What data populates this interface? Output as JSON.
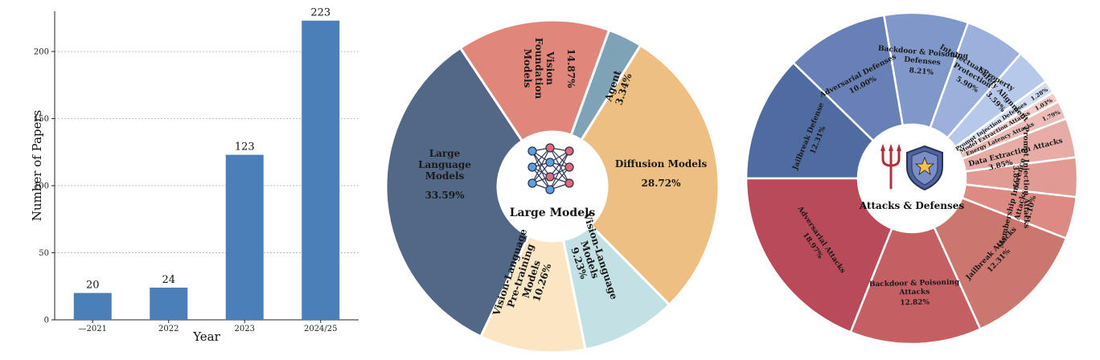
{
  "chart_data": [
    {
      "type": "bar",
      "categories": [
        "—2021",
        "2022",
        "2023",
        "2024/25"
      ],
      "values": [
        20,
        24,
        123,
        223
      ],
      "xlabel": "Year",
      "ylabel": "Number of Papers",
      "ylim": [
        0,
        230
      ],
      "yticks": [
        "0",
        "50",
        "100",
        "150",
        "200"
      ],
      "grid": "horizontal dotted",
      "color": "#4a7fb8"
    },
    {
      "type": "pie",
      "center_label": "Large Models",
      "center_icon": "neural-network-icon",
      "slices": [
        {
          "name": "Large Language Models",
          "percent": "33.59%",
          "value": 33.59,
          "color": "#536786"
        },
        {
          "name": "Vision Foundation Models",
          "percent": "14.87%",
          "value": 14.87,
          "color": "#e0867a"
        },
        {
          "name": "Agent",
          "percent": "3.34%",
          "value": 3.34,
          "color": "#7fa3b6"
        },
        {
          "name": "Diffusion Models",
          "percent": "28.72%",
          "value": 28.72,
          "color": "#edbf82"
        },
        {
          "name": "Vision-Language Models",
          "percent": "9.23%",
          "value": 9.23,
          "color": "#c3e0e4"
        },
        {
          "name": "Vision-Language Pre-training Models",
          "percent": "10.26%",
          "value": 10.26,
          "color": "#fae6c3"
        }
      ]
    },
    {
      "type": "pie",
      "center_label": "Attacks & Defenses",
      "center_icons": [
        "trident-icon",
        "shield-star-icon"
      ],
      "slices": [
        {
          "name": "Jailbreak Defense",
          "percent": "12.31%",
          "value": 12.31,
          "color": "#4f6b9f"
        },
        {
          "name": "Adversarial Defenses",
          "percent": "10.00%",
          "value": 10.0,
          "color": "#6880b6"
        },
        {
          "name": "Backdoor & Poisoning Defenses",
          "percent": "8.21%",
          "value": 8.21,
          "color": "#8097c9"
        },
        {
          "name": "Intellectual Property Protection",
          "percent": "5.90%",
          "value": 5.9,
          "color": "#9cb0dc"
        },
        {
          "name": "Safety Alignment",
          "percent": "3.59%",
          "value": 3.59,
          "color": "#b7c9ea"
        },
        {
          "name": "Prompt Injection Defenses",
          "percent": "1.28%",
          "value": 1.28,
          "color": "#d3def3"
        },
        {
          "name": "Model Extraction Attacks",
          "percent": "1.03%",
          "value": 1.03,
          "color": "#f0cdca"
        },
        {
          "name": "Energy Latency Attacks",
          "percent": "1.79%",
          "value": 1.79,
          "color": "#ecbdb8"
        },
        {
          "name": "Data Extraction Attacks",
          "percent": "3.85%",
          "value": 3.85,
          "color": "#e7aca6"
        },
        {
          "name": "Prompt Injection Attacks",
          "percent": "3.85%",
          "value": 3.85,
          "color": "#e29b94"
        },
        {
          "name": "Membership Inference Attacks",
          "percent": "4.10%",
          "value": 4.1,
          "color": "#dc8a83"
        },
        {
          "name": "Jailbreak Attacks",
          "percent": "12.31%",
          "value": 12.31,
          "color": "#cc7670"
        },
        {
          "name": "Backdoor & Poisoning Attacks",
          "percent": "12.82%",
          "value": 12.82,
          "color": "#c45f64"
        },
        {
          "name": "Adversarial Attacks",
          "percent": "18.97%",
          "value": 18.97,
          "color": "#b94a5a"
        }
      ]
    }
  ]
}
